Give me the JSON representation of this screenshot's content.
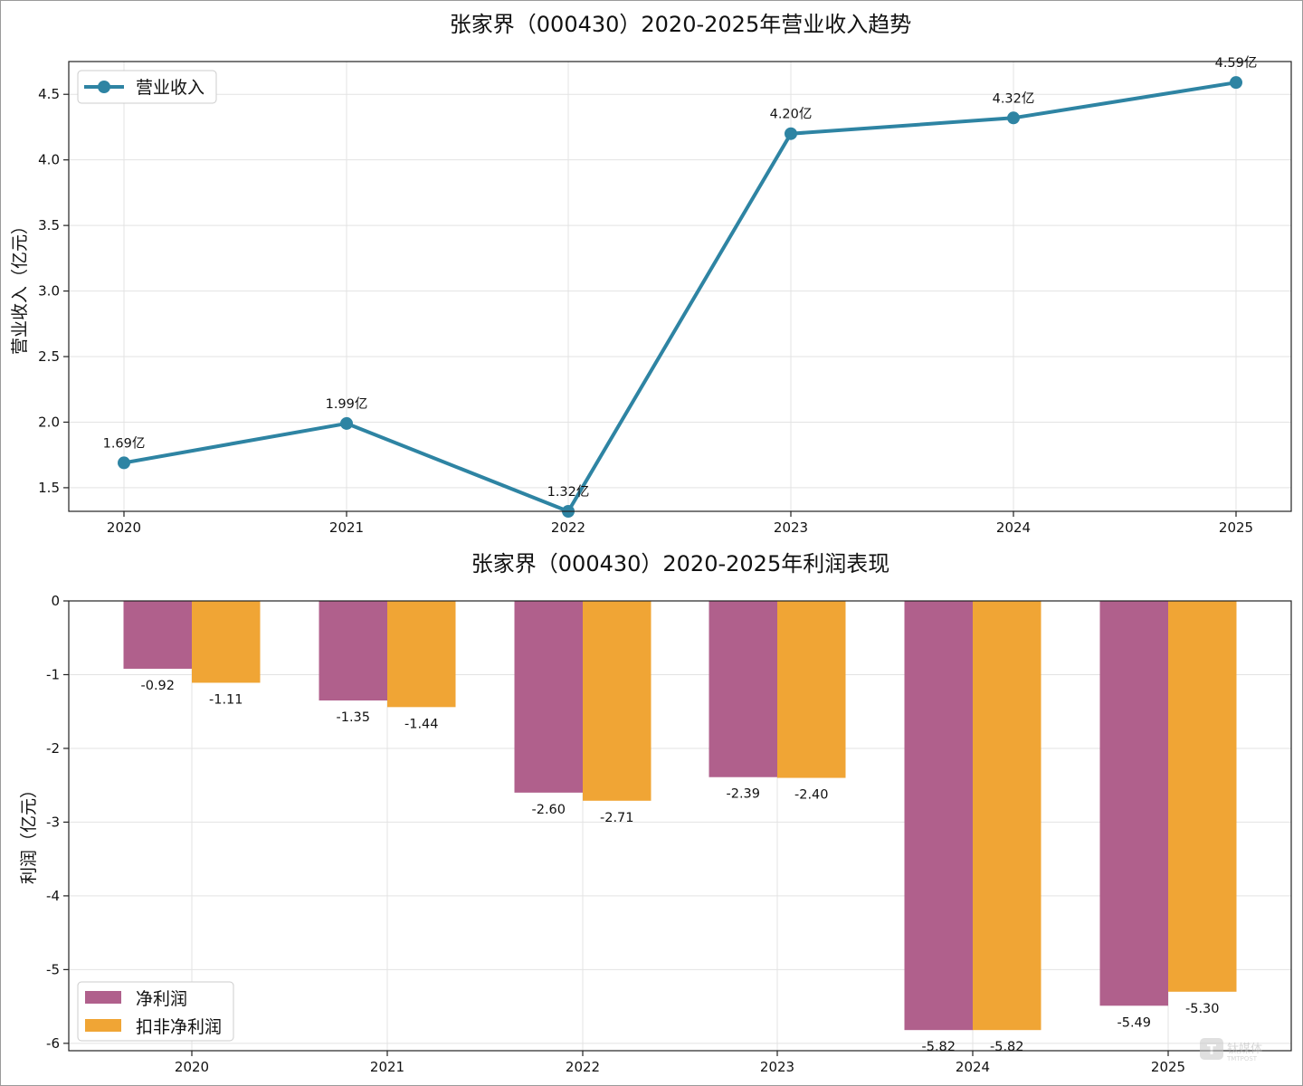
{
  "chart_data": [
    {
      "type": "line",
      "title": "张家界（000430）2020-2025年营业收入趋势",
      "xlabel": "",
      "ylabel": "营业收入（亿元）",
      "categories": [
        "2020",
        "2021",
        "2022",
        "2023",
        "2024",
        "2025"
      ],
      "ylim": [
        1.32,
        4.75
      ],
      "yticks": [
        "1.5",
        "2.0",
        "2.5",
        "3.0",
        "3.5",
        "4.0",
        "4.5"
      ],
      "grid": true,
      "legend_position": "top-left",
      "series": [
        {
          "name": "营业收入",
          "color": "#2e84a3",
          "values": [
            1.69,
            1.99,
            1.32,
            4.2,
            4.32,
            4.59
          ],
          "labels": [
            "1.69亿",
            "1.99亿",
            "1.32亿",
            "4.20亿",
            "4.32亿",
            "4.59亿"
          ]
        }
      ]
    },
    {
      "type": "bar",
      "title": "张家界（000430）2020-2025年利润表现",
      "xlabel": "",
      "ylabel": "利润（亿元）",
      "categories": [
        "2020",
        "2021",
        "2022",
        "2023",
        "2024",
        "2025"
      ],
      "ylim": [
        -6.1,
        0
      ],
      "yticks": [
        "0",
        "-1",
        "-2",
        "-3",
        "-4",
        "-5",
        "-6"
      ],
      "grid": true,
      "legend_position": "bottom-left",
      "series": [
        {
          "name": "净利润",
          "color": "#b0608c",
          "values": [
            -0.92,
            -1.35,
            -2.6,
            -2.39,
            -5.82,
            -5.49
          ],
          "labels": [
            "-0.92",
            "-1.35",
            "-2.60",
            "-2.39",
            "-5.82",
            "-5.49"
          ]
        },
        {
          "name": "扣非净利润",
          "color": "#f0a535",
          "values": [
            -1.11,
            -1.44,
            -2.71,
            -2.4,
            -5.82,
            -5.3
          ],
          "labels": [
            "-1.11",
            "-1.44",
            "-2.71",
            "-2.40",
            "-5.82",
            "-5.30"
          ]
        }
      ]
    }
  ],
  "watermark": {
    "text": "钛媒体",
    "subtext": "TMTPOST"
  }
}
